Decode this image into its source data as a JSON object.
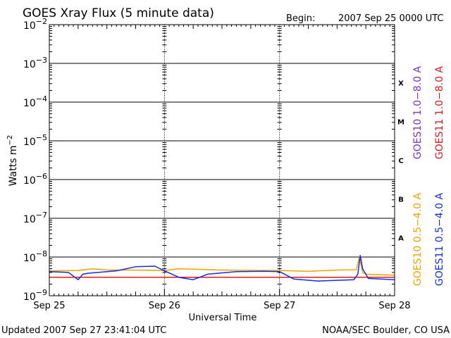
{
  "header": {
    "title": "GOES Xray Flux (5 minute data)",
    "begin_label": "Begin:",
    "begin_value": "2007 Sep 25 0000 UTC"
  },
  "footer": {
    "updated": "Updated 2007 Sep 27 23:41:04 UTC",
    "credit": "NOAA/SEC Boulder, CO USA"
  },
  "colors": {
    "background": "#ffffff",
    "axis": "#000000",
    "goes10_long": "#7a2fd0",
    "goes11_long": "#e01818",
    "goes10_short": "#f0a000",
    "goes11_short": "#1030e0"
  },
  "chart_data": {
    "type": "line",
    "title": "GOES Xray Flux (5 minute data)",
    "xlabel": "Universal Time",
    "ylabel": "Watts m-2",
    "ylabel_base": "Watts m",
    "ylabel_exp": "−2",
    "y_scale": "log",
    "ylim": [
      1e-09,
      0.01
    ],
    "xlim": [
      "2007-09-25",
      "2007-09-28"
    ],
    "x_ticks": [
      "Sep 25",
      "Sep 26",
      "Sep 27",
      "Sep 28"
    ],
    "y_ticks": [
      {
        "base": "10",
        "exp": "−2"
      },
      {
        "base": "10",
        "exp": "−3"
      },
      {
        "base": "10",
        "exp": "−4"
      },
      {
        "base": "10",
        "exp": "−5"
      },
      {
        "base": "10",
        "exp": "−6"
      },
      {
        "base": "10",
        "exp": "−7"
      },
      {
        "base": "10",
        "exp": "−8"
      },
      {
        "base": "10",
        "exp": "−9"
      }
    ],
    "flare_classes": [
      "X",
      "M",
      "C",
      "B",
      "A"
    ],
    "grid": true,
    "legend_position": "right, vertical",
    "series": [
      {
        "name": "GOES10 1.0−8.0 A",
        "color": "#7a2fd0",
        "x": [
          "2007-09-25 00:00",
          "2007-09-28 00:00"
        ],
        "y": [
          3e-09,
          3e-09
        ]
      },
      {
        "name": "GOES11 1.0−8.0 A",
        "color": "#e01818",
        "x": [
          "2007-09-25 00:00",
          "2007-09-28 00:00"
        ],
        "y": [
          3e-09,
          3e-09
        ]
      },
      {
        "name": "GOES10 0.5−4.0 A",
        "color": "#f0a000",
        "x": [
          "2007-09-25 00:00",
          "2007-09-25 06:00",
          "2007-09-25 09:00",
          "2007-09-25 12:00",
          "2007-09-25 18:00",
          "2007-09-26 00:00",
          "2007-09-26 03:00",
          "2007-09-26 12:00",
          "2007-09-26 21:00",
          "2007-09-27 00:00",
          "2007-09-27 06:00",
          "2007-09-27 12:00",
          "2007-09-27 16:00",
          "2007-09-27 16:40",
          "2007-09-27 17:20",
          "2007-09-27 18:00",
          "2007-09-27 21:00",
          "2007-09-28 00:00"
        ],
        "y": [
          4.4e-09,
          4.5e-09,
          5e-09,
          4.6e-09,
          4.6e-09,
          4.5e-09,
          5e-09,
          4.6e-09,
          4.5e-09,
          4.5e-09,
          4.3e-09,
          4.6e-09,
          4.7e-09,
          1e-08,
          4e-09,
          3.6e-09,
          3.5e-09,
          3.4e-09
        ]
      },
      {
        "name": "GOES11 0.5−4.0 A",
        "color": "#1030e0",
        "x": [
          "2007-09-25 00:00",
          "2007-09-25 04:00",
          "2007-09-25 06:00",
          "2007-09-25 07:00",
          "2007-09-25 08:00",
          "2007-09-25 09:00",
          "2007-09-25 14:00",
          "2007-09-25 18:00",
          "2007-09-25 22:00",
          "2007-09-26 00:00",
          "2007-09-26 03:00",
          "2007-09-26 06:00",
          "2007-09-26 09:00",
          "2007-09-26 15:00",
          "2007-09-26 21:00",
          "2007-09-27 00:00",
          "2007-09-27 03:00",
          "2007-09-27 08:00",
          "2007-09-27 12:00",
          "2007-09-27 15:30",
          "2007-09-27 16:20",
          "2007-09-27 16:50",
          "2007-09-27 17:20",
          "2007-09-27 18:30",
          "2007-09-28 00:00"
        ],
        "y": [
          4.2e-09,
          4e-09,
          2.6e-09,
          3.6e-09,
          3.8e-09,
          3.9e-09,
          4.4e-09,
          5.6e-09,
          5.8e-09,
          4.4e-09,
          3e-09,
          2.6e-09,
          3.6e-09,
          4.2e-09,
          4.3e-09,
          4.2e-09,
          2.7e-09,
          2.4e-09,
          2.5e-09,
          2.6e-09,
          3.6e-09,
          1.1e-08,
          5e-09,
          2.8e-09,
          2.6e-09
        ]
      }
    ]
  }
}
